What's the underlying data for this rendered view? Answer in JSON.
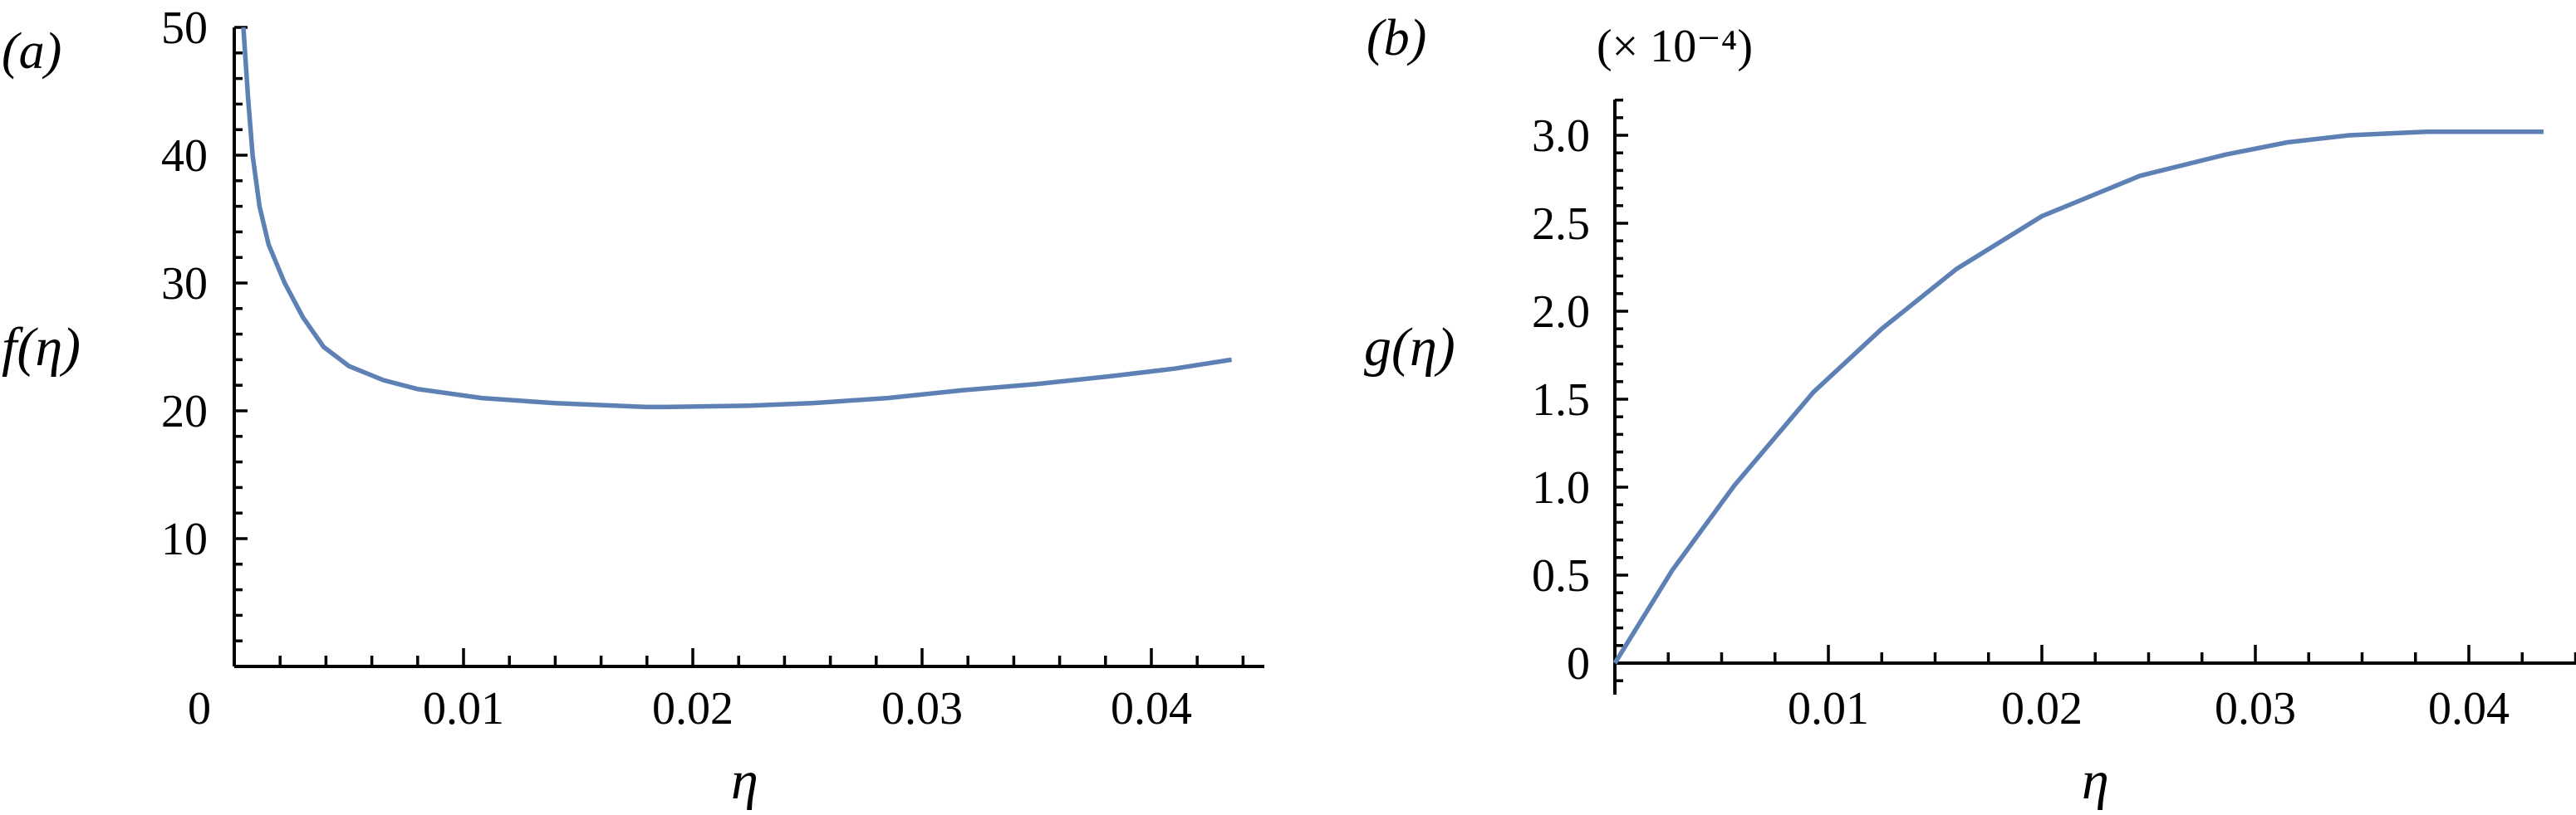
{
  "figure": {
    "panels": [
      {
        "label": "(a)",
        "ylabel": "f(η)",
        "xlabel": "η",
        "multiplier": ""
      },
      {
        "label": "(b)",
        "ylabel": "g(η)",
        "xlabel": "η",
        "multiplier": "(× 10⁻⁴)"
      }
    ]
  },
  "colors": {
    "curve": "#5e81b5",
    "axes": "#000000"
  },
  "chart_data": [
    {
      "type": "line",
      "title": "(a)",
      "xlabel": "η",
      "ylabel": "f(η)",
      "xlim": [
        0,
        0.045
      ],
      "ylim": [
        0,
        50
      ],
      "grid": false,
      "x_ticks": [
        0,
        0.01,
        0.02,
        0.03,
        0.04
      ],
      "x_tick_labels": [
        "0",
        "0.01",
        "0.02",
        "0.03",
        "0.04"
      ],
      "x_minor_step": 0.002,
      "y_ticks": [
        10,
        20,
        30,
        40,
        50
      ],
      "y_tick_labels": [
        "10",
        "20",
        "30",
        "40",
        "50"
      ],
      "y_minor_step": 2,
      "series": [
        {
          "name": "f(η)",
          "x": [
            0.0004,
            0.0006,
            0.0008,
            0.0011,
            0.0015,
            0.0022,
            0.003,
            0.0039,
            0.005,
            0.0065,
            0.008,
            0.0108,
            0.014,
            0.018,
            0.0188,
            0.0225,
            0.0252,
            0.0285,
            0.0317,
            0.035,
            0.0382,
            0.041,
            0.0435
          ],
          "y": [
            50.0,
            44.5,
            40.0,
            36.0,
            33.0,
            30.0,
            27.3,
            25.0,
            23.5,
            22.4,
            21.7,
            21.0,
            20.6,
            20.3,
            20.3,
            20.4,
            20.6,
            21.0,
            21.6,
            22.1,
            22.7,
            23.3,
            24.0
          ]
        }
      ]
    },
    {
      "type": "line",
      "title": "(b)",
      "xlabel": "η",
      "ylabel": "g(η)",
      "y_multiplier": "(× 10⁻⁴)",
      "xlim": [
        0,
        0.045
      ],
      "ylim": [
        -0.17,
        3.2
      ],
      "grid": false,
      "x_ticks": [
        0.01,
        0.02,
        0.03,
        0.04
      ],
      "x_tick_labels": [
        "0.01",
        "0.02",
        "0.03",
        "0.04"
      ],
      "x_minor_step": 0.0025,
      "y_ticks": [
        0,
        0.5,
        1.0,
        1.5,
        2.0,
        2.5,
        3.0
      ],
      "y_tick_labels": [
        "0",
        "0.5",
        "1.0",
        "1.5",
        "2.0",
        "2.5",
        "3.0"
      ],
      "y_minor_step": 0.1,
      "series": [
        {
          "name": "g(η)",
          "x": [
            0,
            0.0027,
            0.0056,
            0.0093,
            0.0125,
            0.016,
            0.02,
            0.0246,
            0.0286,
            0.0315,
            0.0344,
            0.038,
            0.041,
            0.0435
          ],
          "y": [
            0,
            0.53,
            1.01,
            1.54,
            1.9,
            2.24,
            2.54,
            2.77,
            2.89,
            2.96,
            3.0,
            3.02,
            3.02,
            3.02
          ]
        }
      ]
    }
  ]
}
